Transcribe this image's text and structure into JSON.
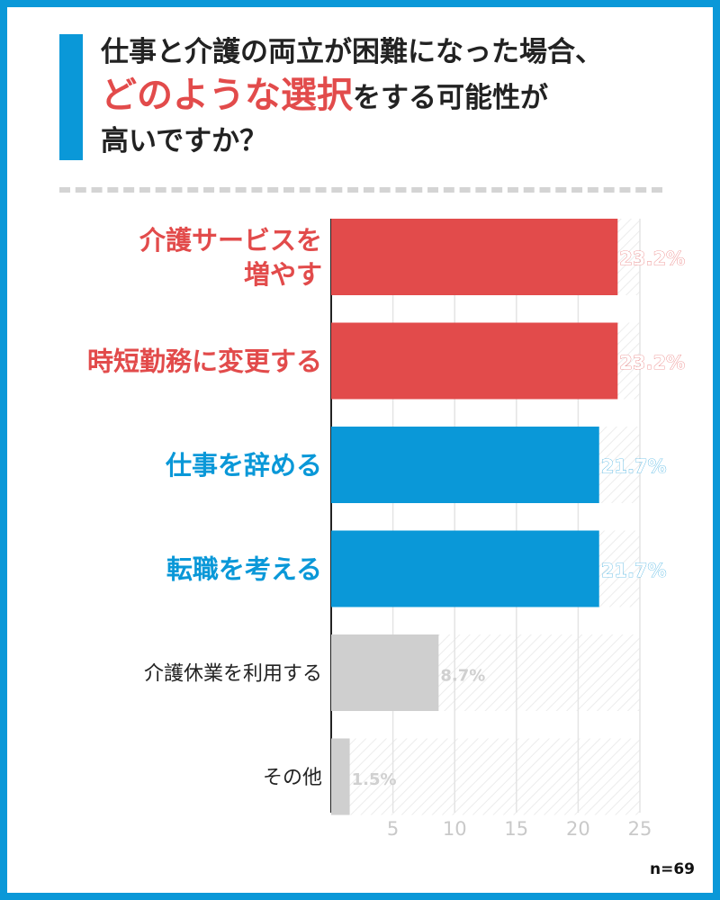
{
  "title": {
    "line1": "仕事と介護の両立が困難になった場合、",
    "highlight": "どのような選択",
    "line2_rest": "をする可能性が",
    "line3": "高いですか？"
  },
  "sample_size": "n=69",
  "colors": {
    "frame": "#0a98d8",
    "red": "#e24b4b",
    "blue": "#0a98d8",
    "gray": "#cfcfcf",
    "gray_text": "#d0d0d0",
    "title_text": "#222222"
  },
  "chart_data": {
    "type": "bar",
    "orientation": "horizontal",
    "title": "仕事と介護の両立が困難になった場合、どのような選択をする可能性が高いですか？",
    "categories": [
      [
        "介護サービスを",
        "増やす"
      ],
      [
        "時短勤務に変更する"
      ],
      [
        "仕事を辞める"
      ],
      [
        "転職を考える"
      ],
      [
        "介護休業を利用する"
      ],
      [
        "その他"
      ]
    ],
    "values": [
      23.2,
      23.2,
      21.7,
      21.7,
      8.7,
      1.5
    ],
    "value_labels": [
      "23.2%",
      "23.2%",
      "21.7%",
      "21.7%",
      "8.7%",
      "1.5%"
    ],
    "bar_colors": [
      "#e24b4b",
      "#e24b4b",
      "#0a98d8",
      "#0a98d8",
      "#cfcfcf",
      "#cfcfcf"
    ],
    "label_colors": [
      "#e24b4b",
      "#e24b4b",
      "#0a98d8",
      "#0a98d8",
      "#222222",
      "#222222"
    ],
    "label_emphasis": [
      true,
      true,
      true,
      true,
      false,
      false
    ],
    "xlim": [
      0,
      25
    ],
    "xticks": [
      5,
      10,
      15,
      20,
      25
    ],
    "grid": true,
    "xlabel": "",
    "ylabel": ""
  }
}
